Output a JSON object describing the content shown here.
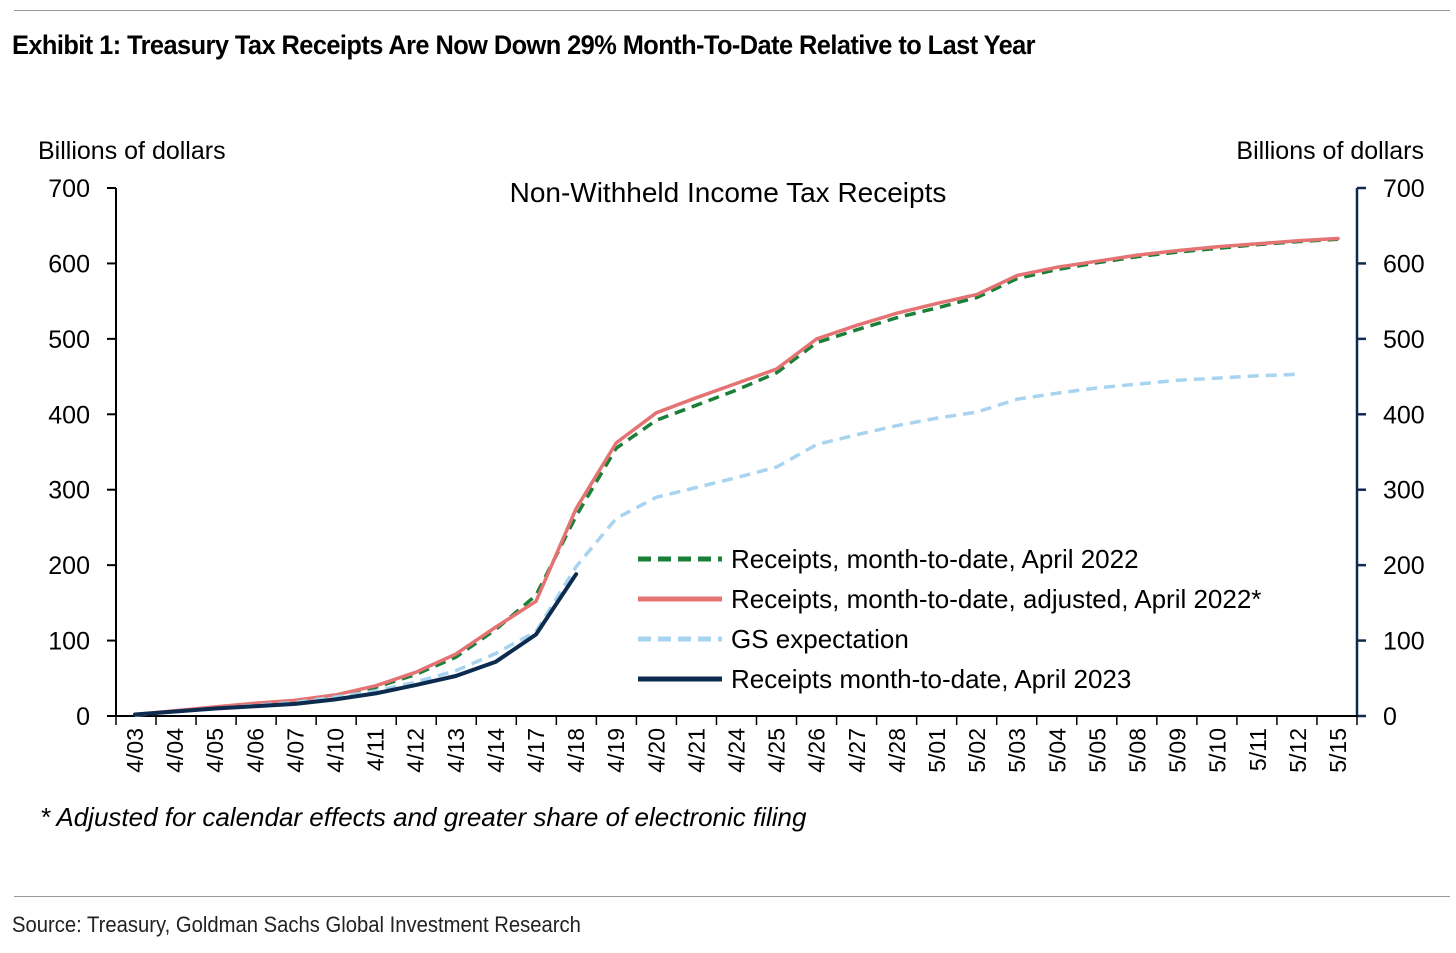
{
  "header": {
    "title": "Exhibit 1: Treasury Tax Receipts Are Now Down 29% Month-To-Date Relative to Last Year"
  },
  "footer": {
    "source": "Source: Treasury, Goldman Sachs Global Investment Research"
  },
  "chart_data": {
    "type": "line",
    "title": "Non-Withheld Income Tax Receipts",
    "ylabel_left": "Billions of dollars",
    "ylabel_right": "Billions of dollars",
    "ylim": [
      0,
      700
    ],
    "yticks": [
      0,
      100,
      200,
      300,
      400,
      500,
      600,
      700
    ],
    "categories": [
      "4/03",
      "4/04",
      "4/05",
      "4/06",
      "4/07",
      "4/10",
      "4/11",
      "4/12",
      "4/13",
      "4/14",
      "4/17",
      "4/18",
      "4/19",
      "4/20",
      "4/21",
      "4/24",
      "4/25",
      "4/26",
      "4/27",
      "4/28",
      "5/01",
      "5/02",
      "5/03",
      "5/04",
      "5/05",
      "5/08",
      "5/09",
      "5/10",
      "5/11",
      "5/12",
      "5/15"
    ],
    "legend_position": "lower-right",
    "grid": false,
    "series": [
      {
        "name": "Receipts, month-to-date, April 2022",
        "color": "#1a7f37",
        "style": "dashed",
        "values": [
          2,
          6,
          11,
          15,
          19,
          26,
          38,
          55,
          78,
          115,
          160,
          265,
          355,
          392,
          412,
          432,
          455,
          495,
          512,
          528,
          541,
          555,
          580,
          592,
          601,
          609,
          615,
          620,
          625,
          629,
          632
        ]
      },
      {
        "name": "Receipts, month-to-date, adjusted, April 2022*",
        "color": "#e57373",
        "style": "solid",
        "values": [
          2,
          7,
          12,
          17,
          21,
          28,
          40,
          58,
          82,
          118,
          152,
          275,
          362,
          402,
          422,
          441,
          460,
          500,
          518,
          534,
          547,
          559,
          584,
          595,
          603,
          611,
          617,
          622,
          626,
          630,
          633
        ]
      },
      {
        "name": "GS expectation",
        "color": "#a8d4f0",
        "style": "dashed",
        "values": [
          1,
          6,
          10,
          14,
          18,
          25,
          33,
          45,
          60,
          83,
          112,
          198,
          262,
          290,
          303,
          316,
          330,
          360,
          373,
          385,
          395,
          403,
          420,
          428,
          435,
          440,
          445,
          448,
          451,
          453,
          null
        ]
      },
      {
        "name": "Receipts month-to-date, April 2023",
        "color": "#0d2b4e",
        "style": "solid",
        "values": [
          2,
          6,
          10,
          13,
          16,
          22,
          30,
          41,
          53,
          72,
          108,
          188,
          null,
          null,
          null,
          null,
          null,
          null,
          null,
          null,
          null,
          null,
          null,
          null,
          null,
          null,
          null,
          null,
          null,
          null,
          null
        ]
      }
    ],
    "footnote": "* Adjusted for calendar effects and greater share of electronic filing"
  }
}
